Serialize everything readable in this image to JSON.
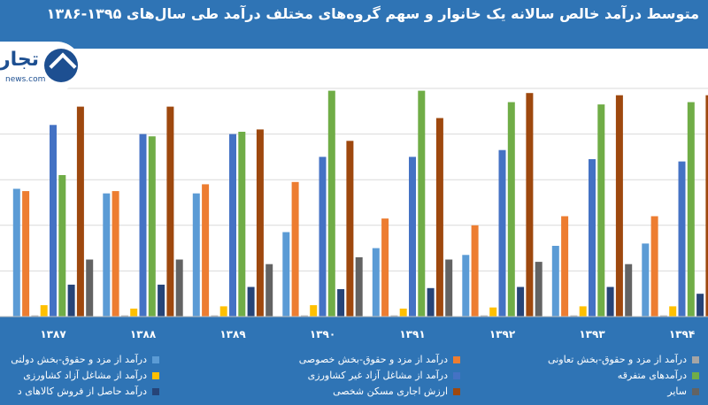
{
  "title": "متوسط درآمد خالص سالانه یک خانوار و سهم گروه‌های مختلف درآمد طی سال‌های ۱۳۹۵-۱۳۸۶",
  "logo": {
    "text": "تجارت",
    "sub": "news.com",
    "icon": "logo-arrow-icon"
  },
  "colors": {
    "background": "#2f74b5",
    "plot": "#ffffff"
  },
  "chart_data": {
    "type": "bar",
    "categories": [
      "۱۳۸۷",
      "۱۳۸۸",
      "۱۳۸۹",
      "۱۳۹۰",
      "۱۳۹۱",
      "۱۳۹۲",
      "۱۳۹۳",
      "۱۳۹۴"
    ],
    "ylim": [
      0,
      100
    ],
    "grid": true,
    "legend_position": "bottom",
    "series": [
      {
        "name": "درآمد از مزد و حقوق-بخش دولتی",
        "color": "#5b9bd5",
        "values": [
          56,
          54,
          54,
          37,
          30,
          27,
          31,
          32
        ]
      },
      {
        "name": "درآمد از مزد و حقوق-بخش خصوصی",
        "color": "#ed7d31",
        "values": [
          55,
          55,
          58,
          59,
          43,
          40,
          44,
          44
        ]
      },
      {
        "name": "درآمد از مزد و حقوق-بخش تعاونی",
        "color": "#a5a5a5",
        "values": [
          0.5,
          0.5,
          0.5,
          0.5,
          0.5,
          0.5,
          0.5,
          0.5
        ]
      },
      {
        "name": "درآمد از مشاغل آزاد کشاورزی",
        "color": "#ffc000",
        "values": [
          5,
          3.5,
          4.5,
          5,
          3.5,
          4,
          4.5,
          4.5
        ]
      },
      {
        "name": "درآمد از مشاغل آزاد غیر کشاورزی",
        "color": "#4472c4",
        "values": [
          84,
          80,
          80,
          70,
          70,
          73,
          69,
          68
        ]
      },
      {
        "name": "درآمدهای متفرقه",
        "color": "#70ad47",
        "values": [
          62,
          79,
          81,
          99,
          99,
          94,
          93,
          94
        ]
      },
      {
        "name": "درآمد حاصل از فروش کالاهای د",
        "color": "#264478",
        "values": [
          14,
          14,
          13,
          12,
          12.5,
          13,
          13,
          10
        ]
      },
      {
        "name": "ارزش اجاری مسکن شخصی",
        "color": "#9e480e",
        "values": [
          92,
          92,
          82,
          77,
          87,
          98,
          97,
          97
        ]
      },
      {
        "name": "سایر",
        "color": "#636363",
        "values": [
          25,
          25,
          23,
          26,
          25,
          24,
          23,
          23
        ]
      }
    ]
  }
}
